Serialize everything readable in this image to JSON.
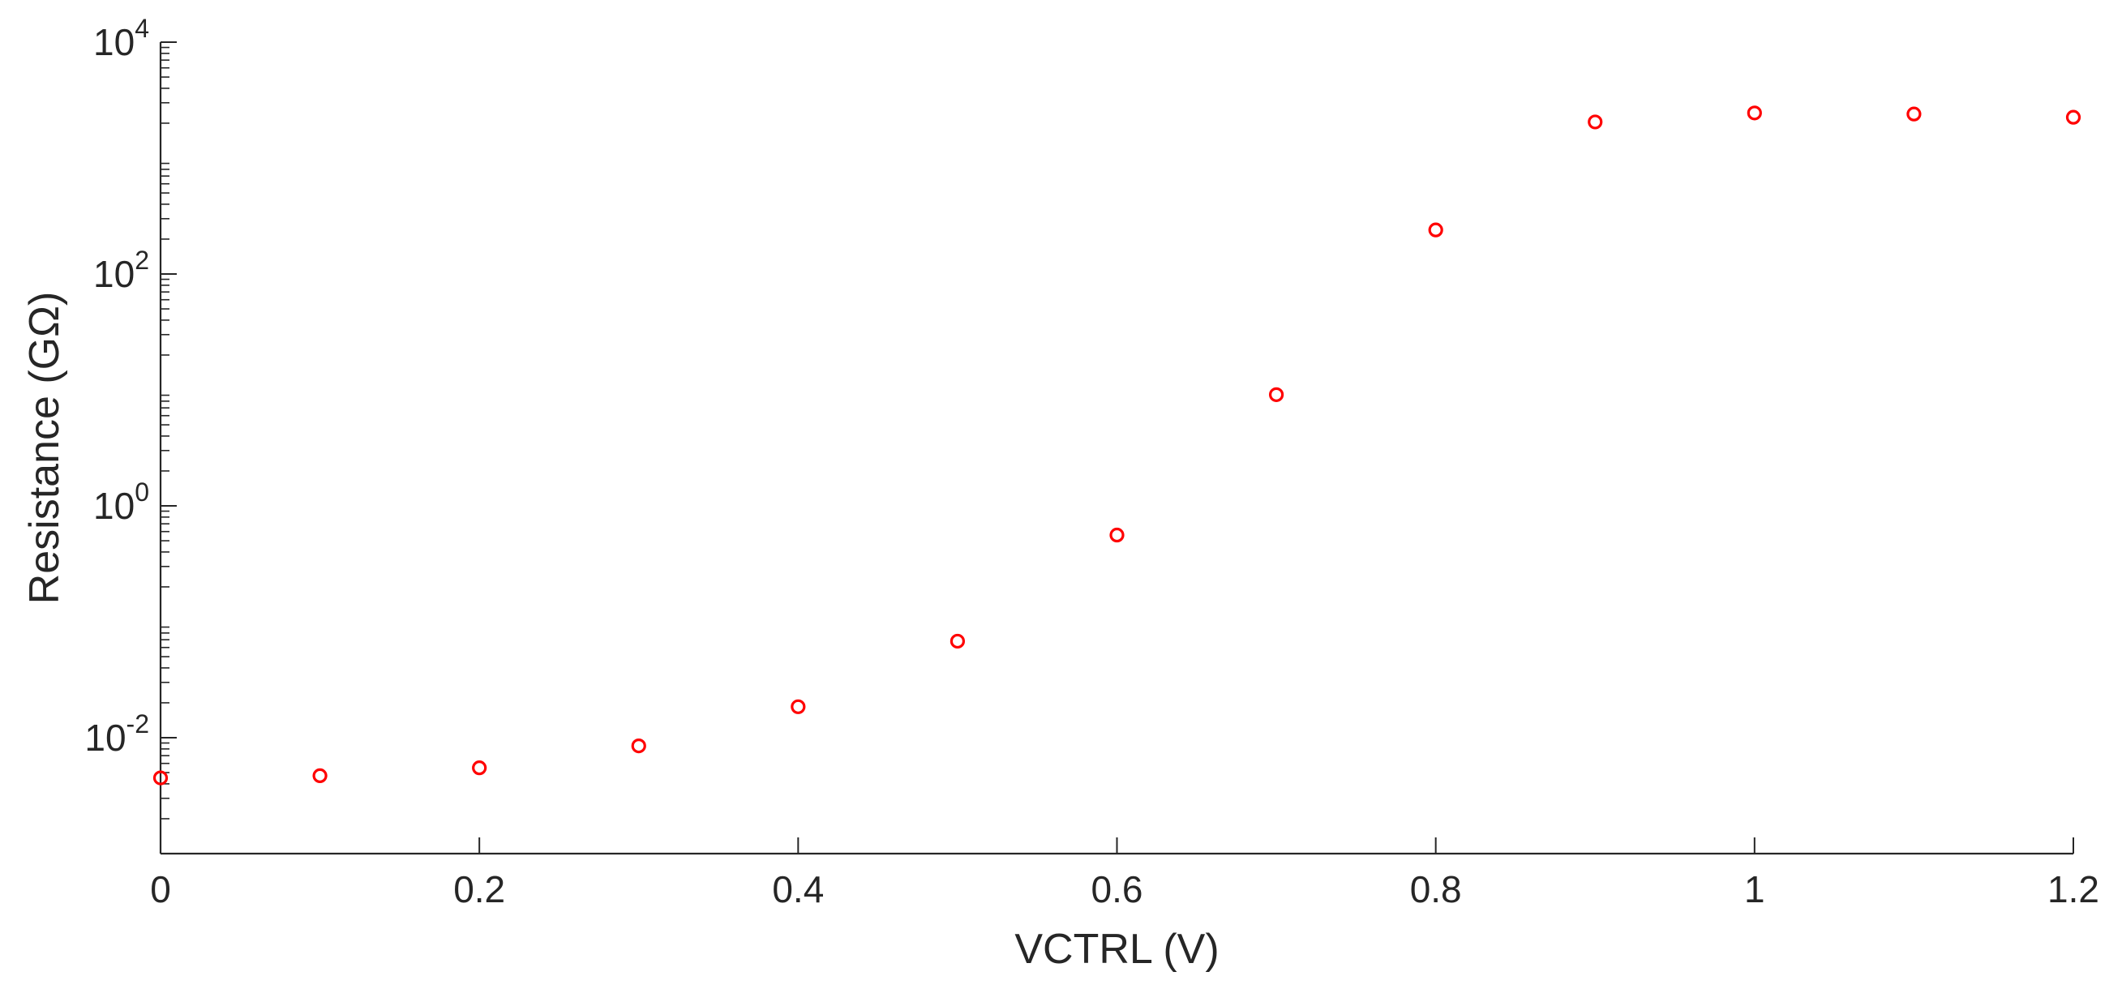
{
  "chart_data": {
    "type": "scatter",
    "title": "",
    "xlabel": "VCTRL (V)",
    "ylabel": "Resistance (GΩ)",
    "xlim": [
      0,
      1.2
    ],
    "ylim": [
      0.001,
      10000
    ],
    "yscale": "log",
    "grid": false,
    "x_ticks": [
      0,
      0.2,
      0.4,
      0.6,
      0.8,
      1,
      1.2
    ],
    "x_tick_labels": [
      "0",
      "0.2",
      "0.4",
      "0.6",
      "0.8",
      "1",
      "1.2"
    ],
    "y_ticks": [
      0.01,
      1,
      100,
      10000
    ],
    "y_tick_labels": [
      {
        "base": "10",
        "exp": "-2"
      },
      {
        "base": "10",
        "exp": "0"
      },
      {
        "base": "10",
        "exp": "2"
      },
      {
        "base": "10",
        "exp": "4"
      }
    ],
    "marker": "open-circle",
    "marker_color": "#ff0000",
    "series": [
      {
        "x": [
          0,
          0.1,
          0.2,
          0.3,
          0.4,
          0.5,
          0.6,
          0.7,
          0.8,
          0.9,
          1.0,
          1.1,
          1.2
        ],
        "y": [
          0.0045,
          0.0047,
          0.0055,
          0.0085,
          0.0185,
          0.068,
          0.56,
          9.1,
          240,
          2050,
          2450,
          2400,
          2250
        ]
      }
    ]
  }
}
